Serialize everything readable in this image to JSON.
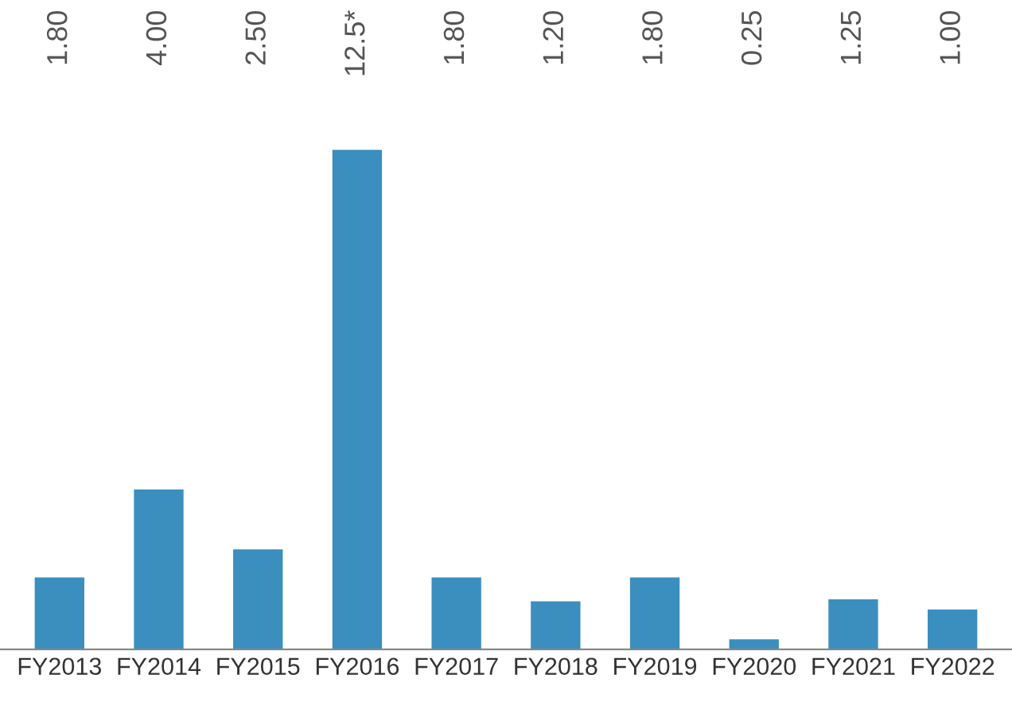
{
  "chart_data": {
    "type": "bar",
    "categories": [
      "FY2013",
      "FY2014",
      "FY2015",
      "FY2016",
      "FY2017",
      "FY2018",
      "FY2019",
      "FY2020",
      "FY2021",
      "FY2022"
    ],
    "values": [
      1.8,
      4.0,
      2.5,
      12.5,
      1.8,
      1.2,
      1.8,
      0.25,
      1.25,
      1.0
    ],
    "value_labels": [
      "1.80",
      "4.00",
      "2.50",
      "12.5*",
      "1.80",
      "1.20",
      "1.80",
      "0.25",
      "1.25",
      "1.00"
    ],
    "color": "#3a8fbf",
    "grid": false,
    "legend": false
  }
}
